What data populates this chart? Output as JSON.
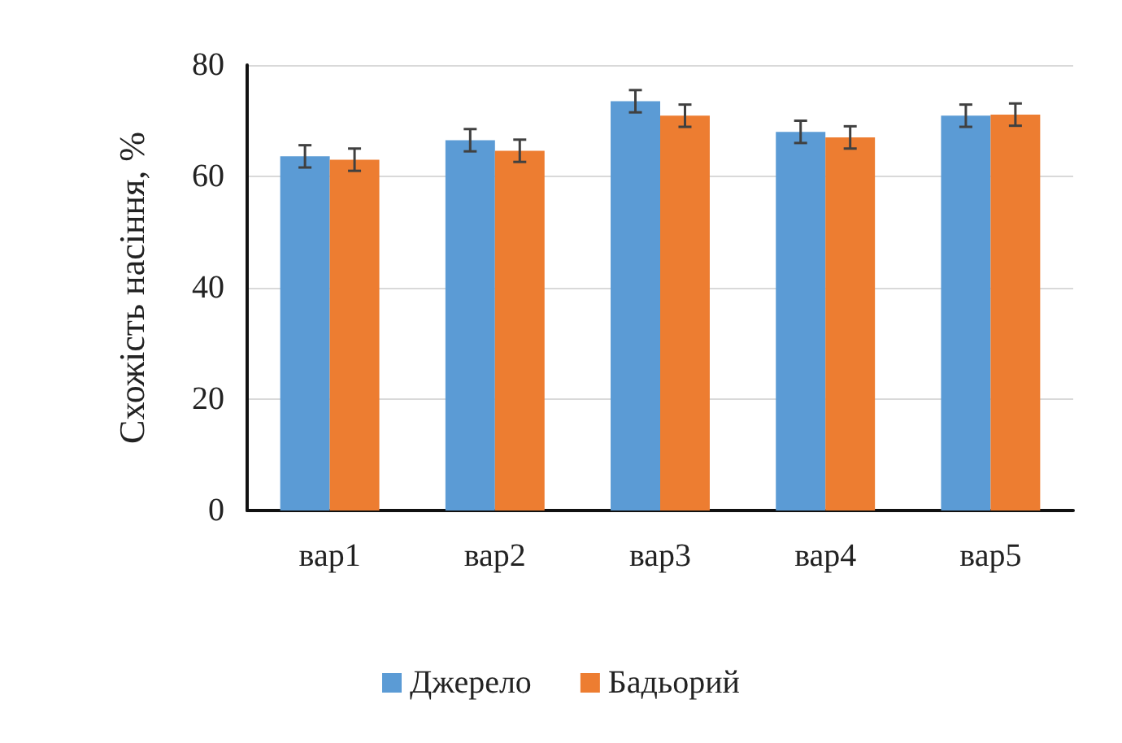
{
  "chart_data": {
    "type": "bar",
    "ylabel": "Схожість насіння, %",
    "categories": [
      "вар1",
      "вар2",
      "вар3",
      "вар4",
      "вар5"
    ],
    "series": [
      {
        "name": "Джерело",
        "color": "#5b9bd5",
        "values": [
          63.6,
          66.5,
          73.5,
          68.0,
          70.9
        ],
        "errors": [
          2,
          2,
          2,
          2,
          2
        ]
      },
      {
        "name": "Бадьорий",
        "color": "#ed7d31",
        "values": [
          63.0,
          64.6,
          70.9,
          67.0,
          71.1
        ],
        "errors": [
          2,
          2,
          2,
          2,
          2
        ]
      }
    ],
    "ylim": [
      0,
      80
    ],
    "yticks": [
      0,
      20,
      40,
      60,
      80
    ],
    "grid": "y",
    "legend": "bottom"
  }
}
